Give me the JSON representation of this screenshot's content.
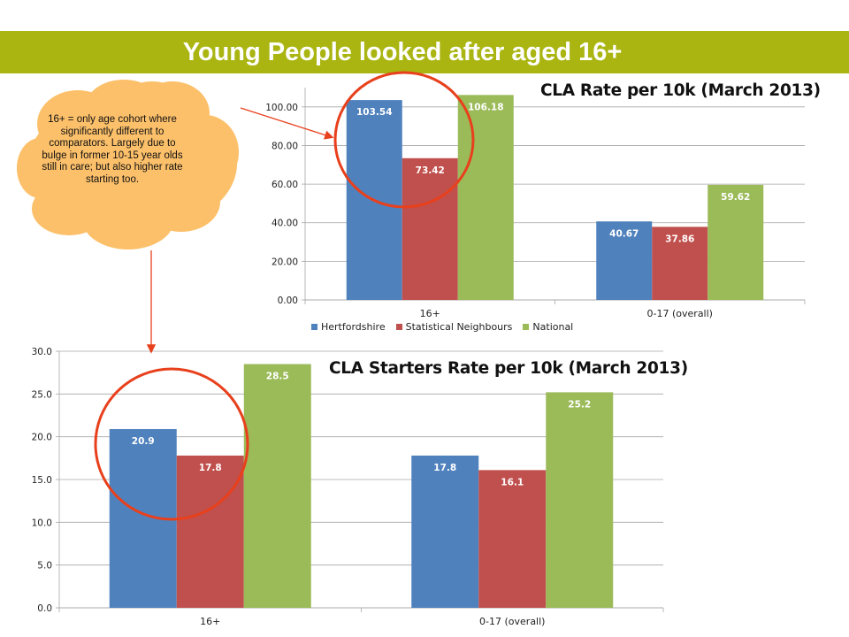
{
  "slide": {
    "title": "Young People looked after aged 16+",
    "callout": "16+ = only age cohort where significantly different to comparators. Largely due to bulge in former 10-15 year olds still in care; but also higher rate starting too."
  },
  "colors": {
    "title_bar": "#aab512",
    "hertfordshire": "#4f81bd",
    "statistical_neighbours": "#c0504d",
    "national": "#9bbb59",
    "highlight": "#e8401c",
    "callout": "#fcc06a"
  },
  "chart_data": [
    {
      "type": "bar",
      "title": "CLA Rate per 10k (March 2013)",
      "categories": [
        "16+",
        "0-17 (overall)"
      ],
      "series": [
        {
          "name": "Hertfordshire",
          "values": [
            103.54,
            40.67
          ]
        },
        {
          "name": "Statistical Neighbours",
          "values": [
            73.42,
            37.86
          ]
        },
        {
          "name": "National",
          "values": [
            106.18,
            59.62
          ]
        }
      ],
      "ylim": [
        0,
        110
      ],
      "yticks": [
        "0.00",
        "20.00",
        "40.00",
        "60.00",
        "80.00",
        "100.00"
      ],
      "ytick_values": [
        0,
        20,
        40,
        60,
        80,
        100
      ],
      "value_labels": [
        [
          "103.54",
          "40.67"
        ],
        [
          "73.42",
          "37.86"
        ],
        [
          "106.18",
          "59.62"
        ]
      ],
      "grid": true,
      "legend": "bottom"
    },
    {
      "type": "bar",
      "title": "CLA Starters Rate per 10k (March 2013)",
      "categories": [
        "16+",
        "0-17 (overall)"
      ],
      "series": [
        {
          "name": "Hertfordshire",
          "values": [
            20.9,
            17.8
          ]
        },
        {
          "name": "Statistical Neighbours",
          "values": [
            17.8,
            16.1
          ]
        },
        {
          "name": "National",
          "values": [
            28.5,
            25.2
          ]
        }
      ],
      "ylim": [
        0,
        30
      ],
      "yticks": [
        "0.0",
        "5.0",
        "10.0",
        "15.0",
        "20.0",
        "25.0",
        "30.0"
      ],
      "ytick_values": [
        0,
        5,
        10,
        15,
        20,
        25,
        30
      ],
      "value_labels": [
        [
          "20.9",
          "17.8"
        ],
        [
          "17.8",
          "16.1"
        ],
        [
          "28.5",
          "25.2"
        ]
      ],
      "grid": true,
      "legend": "none"
    }
  ]
}
